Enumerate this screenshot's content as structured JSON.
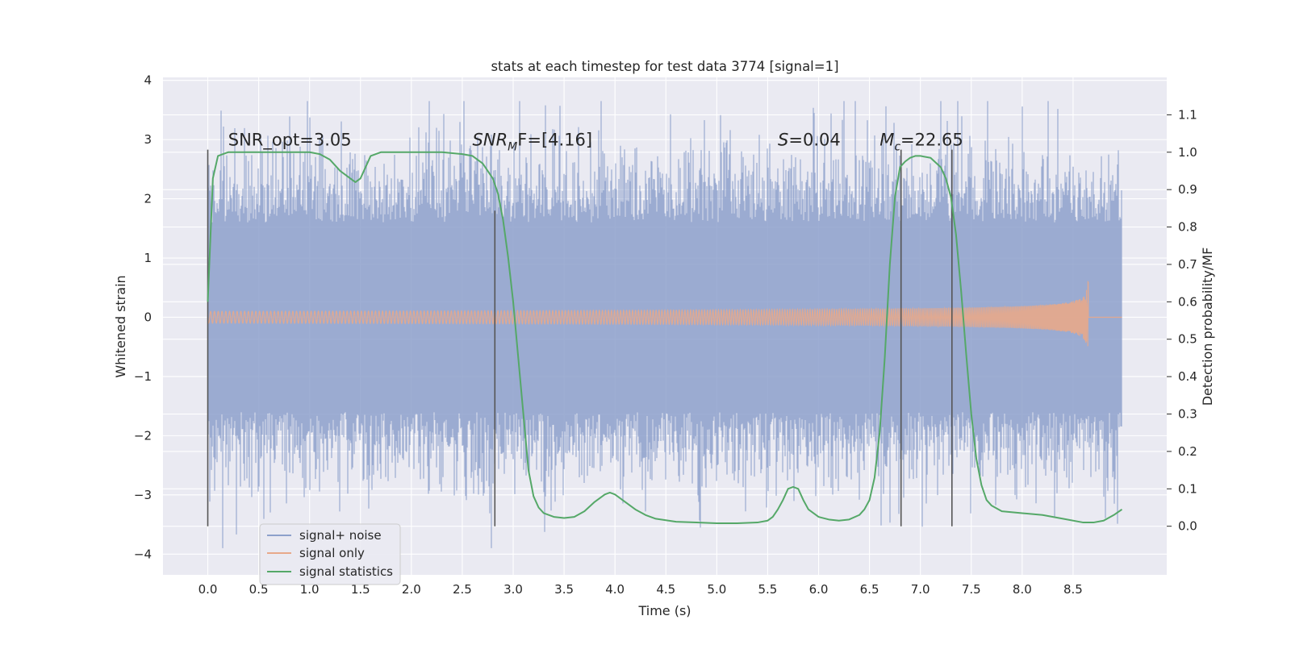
{
  "chart_data": {
    "type": "line",
    "title": "stats at each timestep for test data 3774 [signal=1]",
    "xlabel": "Time (s)",
    "ylabel": "Whitened strain",
    "y2label": "Detection probability/MF",
    "xlim": [
      -0.44,
      9.42
    ],
    "ylim": [
      -4.35,
      4.05
    ],
    "y2lim": [
      -0.13,
      1.2
    ],
    "xticks": [
      0.0,
      0.5,
      1.0,
      1.5,
      2.0,
      2.5,
      3.0,
      3.5,
      4.0,
      4.5,
      5.0,
      5.5,
      6.0,
      6.5,
      7.0,
      7.5,
      8.0,
      8.5
    ],
    "xtick_labels": [
      "0.0",
      "0.5",
      "1.0",
      "1.5",
      "2.0",
      "2.5",
      "3.0",
      "3.5",
      "4.0",
      "4.5",
      "5.0",
      "5.5",
      "6.0",
      "6.5",
      "7.0",
      "7.5",
      "8.0",
      "8.5"
    ],
    "yticks": [
      4,
      3,
      2,
      1,
      0,
      -1,
      -2,
      -3,
      -4
    ],
    "ytick_labels": [
      "4",
      "3",
      "2",
      "1",
      "0",
      "−1",
      "−2",
      "−3",
      "−4"
    ],
    "y2ticks": [
      1.1,
      1.0,
      0.9,
      0.8,
      0.7,
      0.6,
      0.5,
      0.4,
      0.3,
      0.2,
      0.1,
      0.0
    ],
    "y2tick_labels": [
      "1.1",
      "1.0",
      "0.9",
      "0.8",
      "0.7",
      "0.6",
      "0.5",
      "0.4",
      "0.3",
      "0.2",
      "0.1",
      "0.0"
    ],
    "grid": true,
    "legend_position": "lower-left",
    "series": [
      {
        "name": "signal+ noise",
        "axis": "left",
        "color": "#8da0cb",
        "x_range": [
          0.0,
          8.98
        ],
        "typical_amplitude": 1.6,
        "max": 3.65,
        "min": -3.9
      },
      {
        "name": "signal only",
        "axis": "left",
        "color": "#e8a98a",
        "x_range": [
          0.0,
          8.98
        ],
        "chirp_peak_time": 8.65,
        "chirp_peak_amplitude": 0.68
      },
      {
        "name": "signal statistics",
        "axis": "right",
        "color": "#55a868",
        "x": [
          0.0,
          0.05,
          0.1,
          0.15,
          0.2,
          0.3,
          0.5,
          0.8,
          1.0,
          1.1,
          1.2,
          1.3,
          1.4,
          1.45,
          1.5,
          1.55,
          1.6,
          1.7,
          1.8,
          2.0,
          2.3,
          2.5,
          2.6,
          2.7,
          2.8,
          2.85,
          2.9,
          2.95,
          3.0,
          3.05,
          3.1,
          3.15,
          3.2,
          3.25,
          3.3,
          3.4,
          3.5,
          3.6,
          3.7,
          3.8,
          3.9,
          3.95,
          4.0,
          4.1,
          4.2,
          4.3,
          4.4,
          4.6,
          4.8,
          5.0,
          5.2,
          5.4,
          5.5,
          5.55,
          5.6,
          5.65,
          5.7,
          5.75,
          5.8,
          5.85,
          5.9,
          6.0,
          6.1,
          6.2,
          6.3,
          6.4,
          6.45,
          6.5,
          6.55,
          6.6,
          6.65,
          6.7,
          6.75,
          6.8,
          6.85,
          6.9,
          6.95,
          7.0,
          7.1,
          7.2,
          7.25,
          7.3,
          7.35,
          7.4,
          7.45,
          7.5,
          7.55,
          7.6,
          7.65,
          7.7,
          7.8,
          8.0,
          8.2,
          8.4,
          8.6,
          8.7,
          8.8,
          8.9,
          8.98
        ],
        "values": [
          0.6,
          0.93,
          0.99,
          0.995,
          1.0,
          1.0,
          1.0,
          1.0,
          1.0,
          0.995,
          0.98,
          0.95,
          0.93,
          0.92,
          0.93,
          0.96,
          0.99,
          1.0,
          1.0,
          1.0,
          1.0,
          0.995,
          0.99,
          0.97,
          0.93,
          0.89,
          0.82,
          0.72,
          0.6,
          0.45,
          0.3,
          0.15,
          0.08,
          0.05,
          0.035,
          0.025,
          0.022,
          0.025,
          0.04,
          0.065,
          0.085,
          0.09,
          0.085,
          0.065,
          0.045,
          0.03,
          0.02,
          0.012,
          0.01,
          0.008,
          0.008,
          0.01,
          0.015,
          0.025,
          0.045,
          0.07,
          0.1,
          0.105,
          0.1,
          0.07,
          0.045,
          0.025,
          0.018,
          0.015,
          0.018,
          0.03,
          0.045,
          0.07,
          0.13,
          0.25,
          0.45,
          0.7,
          0.88,
          0.96,
          0.975,
          0.985,
          0.99,
          0.99,
          0.985,
          0.96,
          0.93,
          0.88,
          0.78,
          0.63,
          0.46,
          0.3,
          0.18,
          0.11,
          0.07,
          0.055,
          0.04,
          0.035,
          0.03,
          0.02,
          0.01,
          0.01,
          0.015,
          0.03,
          0.045
        ]
      }
    ],
    "vertical_markers": [
      {
        "x": 0.0,
        "ymax": 2.83
      },
      {
        "x": 2.82,
        "ymax": 1.8
      },
      {
        "x": 6.81,
        "ymax": 2.83
      },
      {
        "x": 7.31,
        "ymax": 2.83
      }
    ],
    "vertical_marker_color": "#555555",
    "annotations": [
      {
        "text": "SNR_opt=3.05",
        "x": 0.2,
        "y": 2.9,
        "style": "plain"
      },
      {
        "main": "SNR",
        "sub": "M",
        "rest": "F=[4.16]",
        "x": 2.6,
        "y": 2.9,
        "style": "math"
      },
      {
        "main": "S",
        "sub": "",
        "rest": "=0.04",
        "x": 5.6,
        "y": 2.9,
        "style": "math"
      },
      {
        "main": "M",
        "sub": "c",
        "rest": "=22.65",
        "x": 6.6,
        "y": 2.9,
        "style": "math"
      }
    ]
  }
}
